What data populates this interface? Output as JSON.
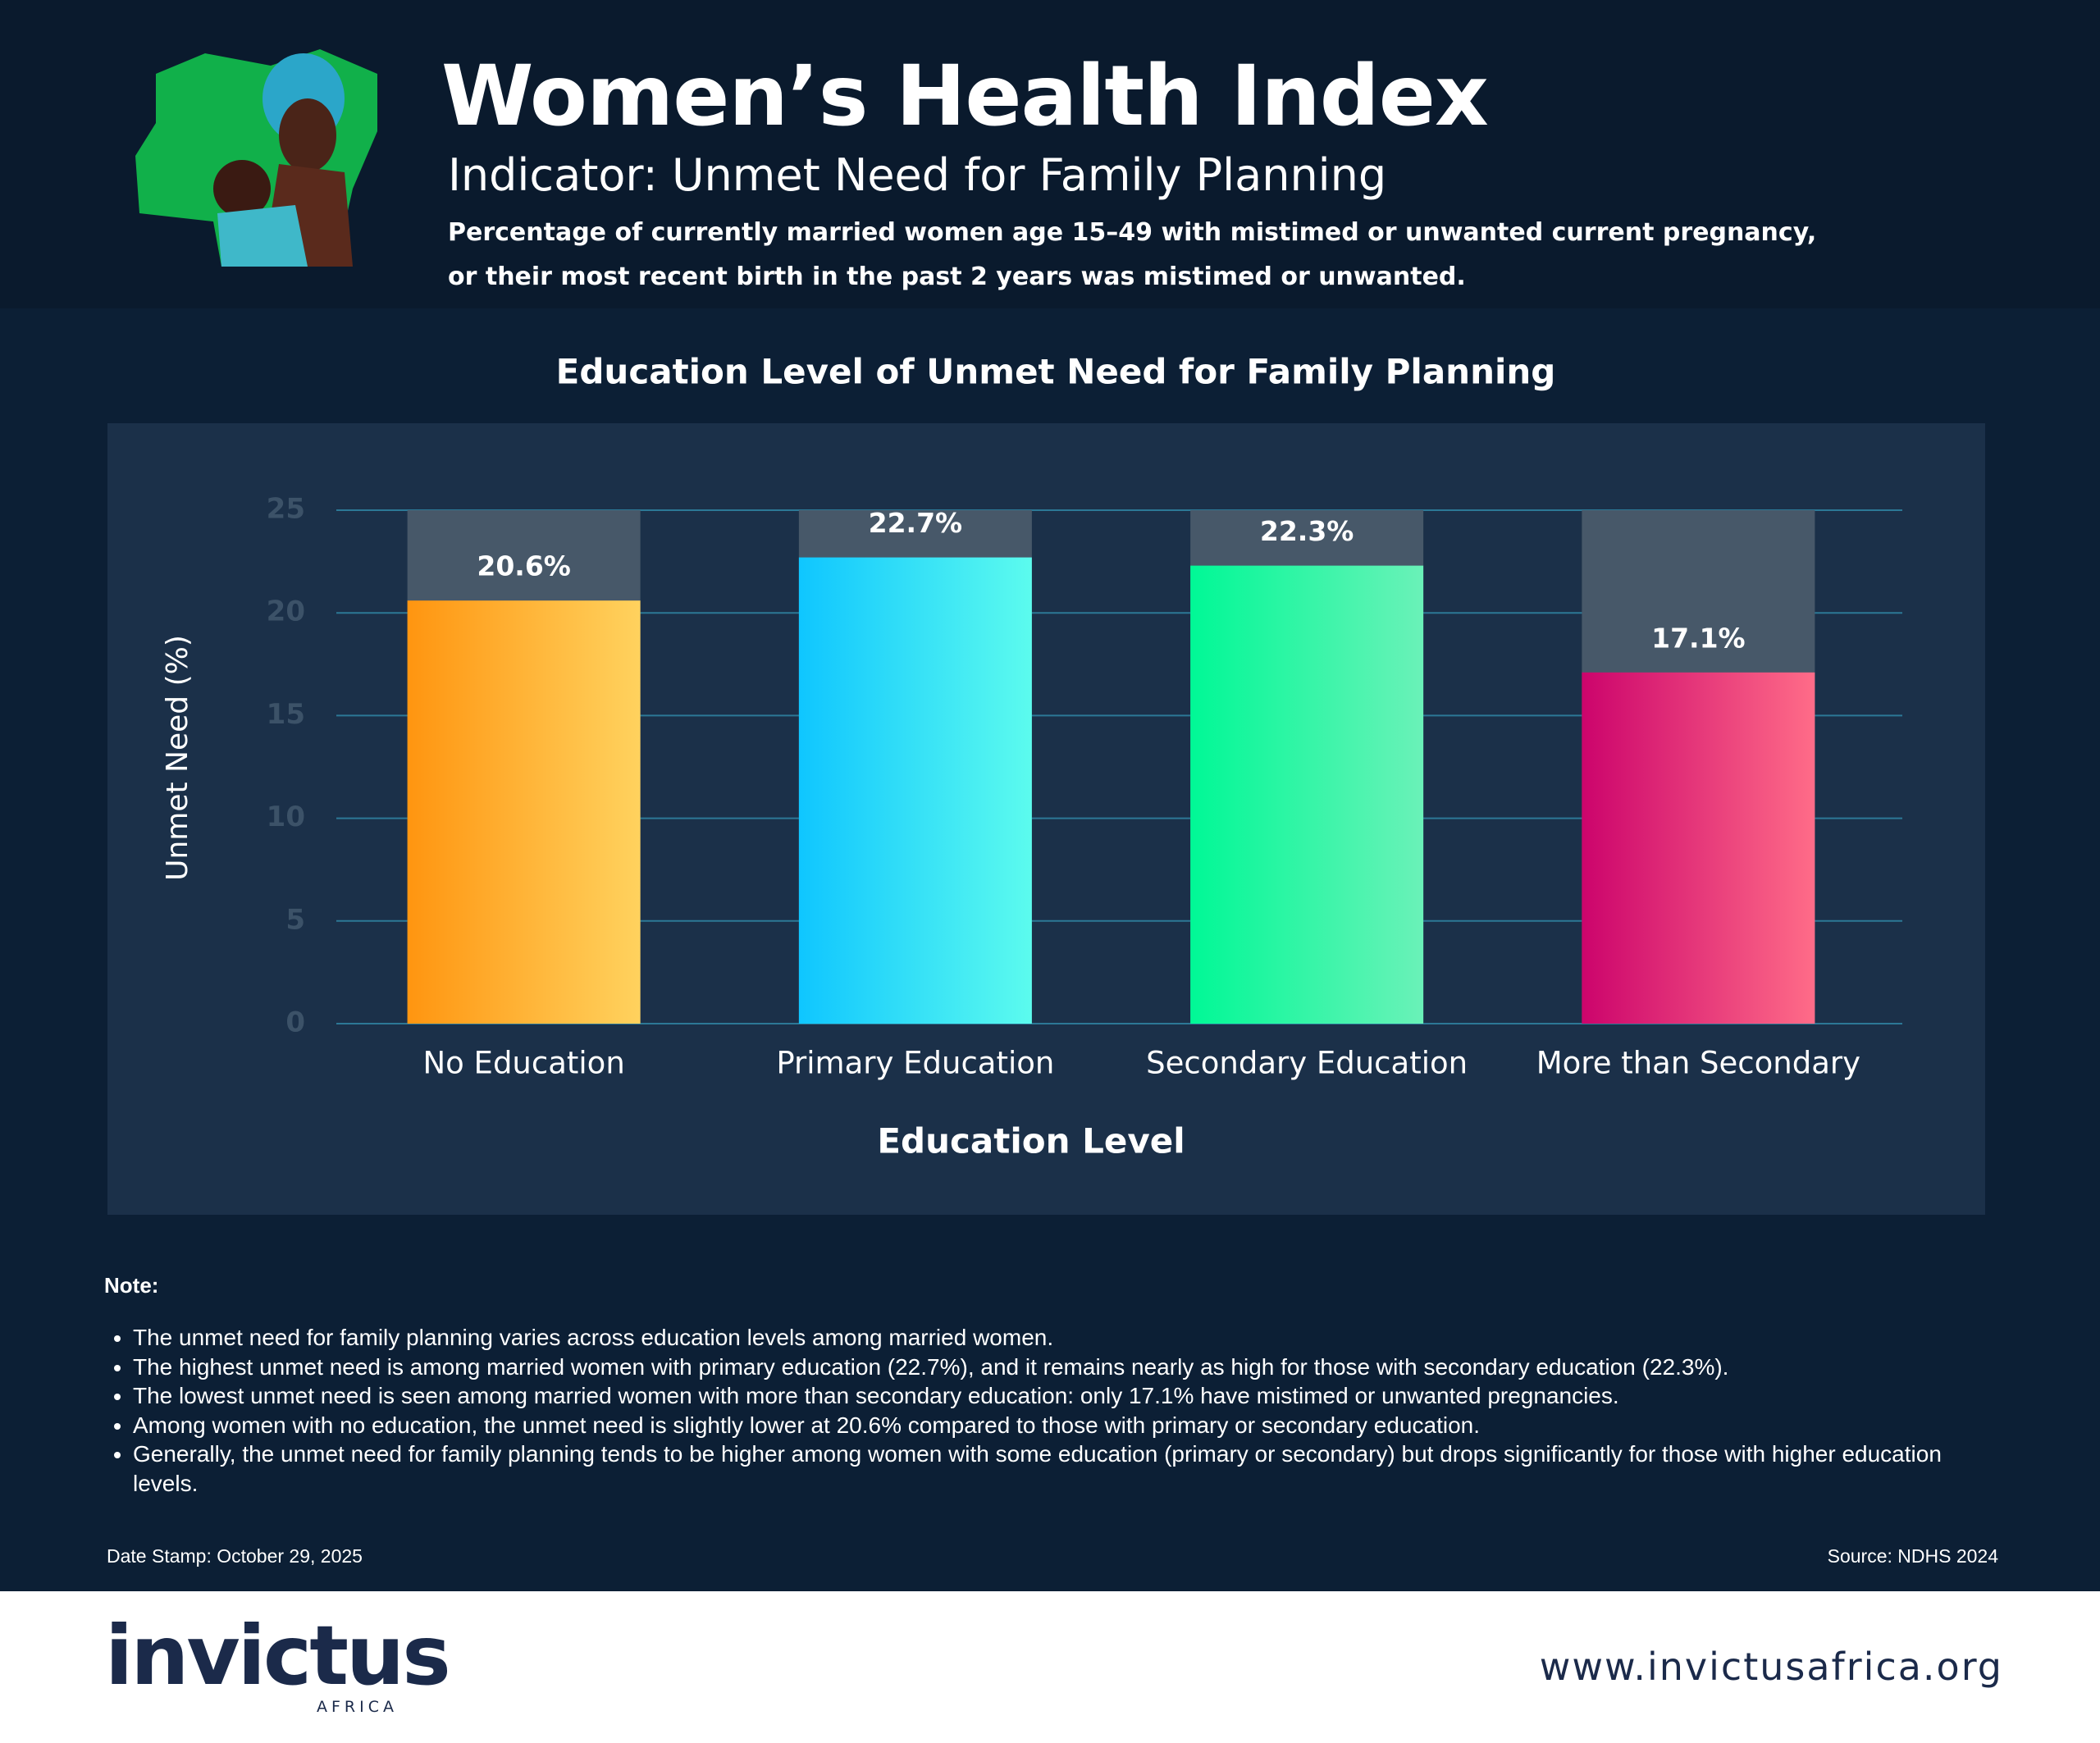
{
  "header": {
    "title": "Women’s Health Index",
    "subtitle": "Indicator: Unmet Need for Family Planning",
    "description": [
      "Percentage of currently married women age 15–49 with mistimed or unwanted current pregnancy,",
      "or their most recent birth in the past 2 years was mistimed or unwanted."
    ]
  },
  "chart_data": {
    "type": "bar",
    "title": "Education Level of Unmet Need for Family Planning",
    "x_label": "Education Level",
    "y_label": "Unmet Need (%)",
    "categories": [
      "No Education",
      "Primary Education",
      "Secondary Education",
      "More than Secondary"
    ],
    "values": [
      20.6,
      22.7,
      22.3,
      17.1
    ],
    "value_labels": [
      "20.6%",
      "22.7%",
      "22.3%",
      "17.1%"
    ],
    "colors": [
      [
        "#ff9510",
        "#ffd25e"
      ],
      [
        "#0fc6ff",
        "#5cfbee"
      ],
      [
        "#00f896",
        "#6af2b8"
      ],
      [
        "#cc046c",
        "#ff6c88"
      ]
    ],
    "track_color": "#475869",
    "ylim": [
      0,
      25
    ],
    "yticks": [
      0,
      5,
      10,
      15,
      20,
      25
    ],
    "grid": true
  },
  "notes": {
    "title": "Note:",
    "items": [
      "The unmet need for family planning varies across education levels among married women.",
      "The highest unmet need is among married women with primary education (22.7%), and it remains nearly as high for those with secondary education (22.3%).",
      "The lowest unmet need is seen among married women with more than secondary education: only 17.1% have mistimed or unwanted pregnancies.",
      "Among women with no education, the unmet need is slightly lower at 20.6% compared to those with primary or secondary education.",
      "Generally, the unmet need for family planning tends to be higher among women with some education (primary or secondary) but drops significantly for those with higher education levels."
    ]
  },
  "date_stamp": "Date Stamp: October 29, 2025",
  "source": "Source: NDHS 2024",
  "footer": {
    "logo": "invictus",
    "logo_sub": "AFRICA",
    "url": "www.invictusafrica.org"
  }
}
